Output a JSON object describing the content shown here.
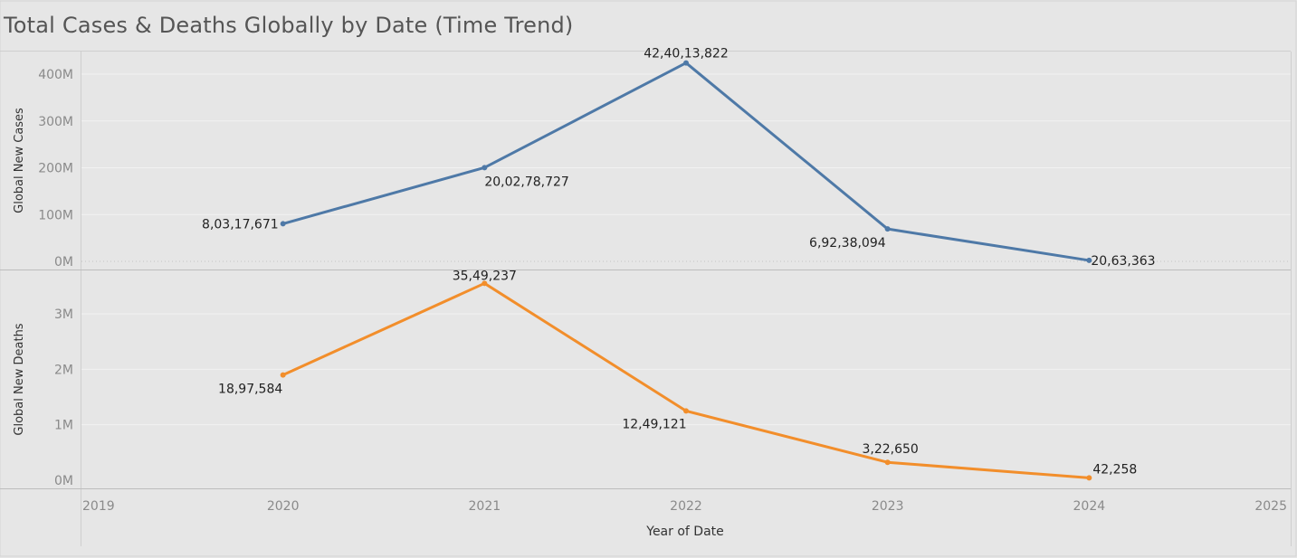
{
  "title": "Total Cases & Deaths Globally by Date (Time Trend)",
  "colors": {
    "cases": "#4e79a7",
    "deaths": "#f28e2b"
  },
  "chart_data": {
    "type": "line",
    "title": "Total Cases & Deaths Globally by Date (Time Trend)",
    "xlabel": "Year of Date",
    "x_ticks": [
      "2019",
      "2020",
      "2021",
      "2022",
      "2023",
      "2024",
      "2025"
    ],
    "xlim": [
      2019,
      2025
    ],
    "grid": true,
    "legend": "none",
    "panels": [
      {
        "ylabel": "Global New Cases",
        "ylim": [
          0,
          430000000
        ],
        "y_ticks": [
          {
            "value": 0,
            "label": "0M"
          },
          {
            "value": 100000000,
            "label": "100M"
          },
          {
            "value": 200000000,
            "label": "200M"
          },
          {
            "value": 300000000,
            "label": "300M"
          },
          {
            "value": 400000000,
            "label": "400M"
          }
        ],
        "series": [
          {
            "x": [
              2020,
              2021,
              2022,
              2023,
              2024
            ],
            "values": [
              80317671,
              200278727,
              424013822,
              69238094,
              2063363
            ],
            "labels": [
              "8,03,17,671",
              "20,02,78,727",
              "42,40,13,822",
              "6,92,38,094",
              "20,63,363"
            ]
          }
        ]
      },
      {
        "ylabel": "Global New Deaths",
        "ylim": [
          0,
          3600000
        ],
        "y_ticks": [
          {
            "value": 0,
            "label": "0M"
          },
          {
            "value": 1000000,
            "label": "1M"
          },
          {
            "value": 2000000,
            "label": "2M"
          },
          {
            "value": 3000000,
            "label": "3M"
          }
        ],
        "series": [
          {
            "x": [
              2020,
              2021,
              2022,
              2023,
              2024
            ],
            "values": [
              1897584,
              3549237,
              1249121,
              322650,
              42258
            ],
            "labels": [
              "18,97,584",
              "35,49,237",
              "12,49,121",
              "3,22,650",
              "42,258"
            ]
          }
        ]
      }
    ]
  }
}
